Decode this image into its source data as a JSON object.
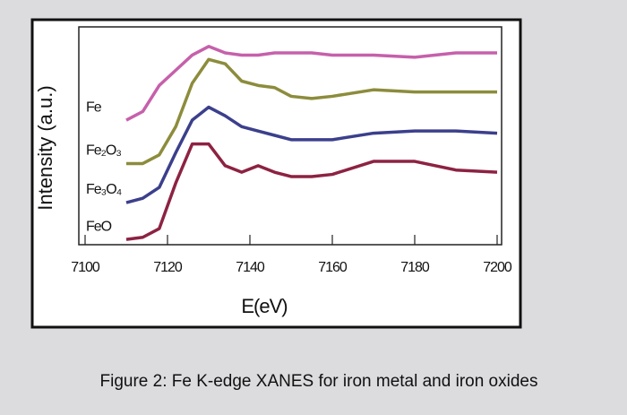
{
  "chart_data": {
    "type": "line",
    "caption": "Figure 2: Fe K-edge XANES for iron metal and iron oxides",
    "x_label": "E(eV)",
    "y_label": "Intensity (a.u.)",
    "xlim": [
      7100,
      7200
    ],
    "xticks": [
      7100,
      7120,
      7140,
      7160,
      7180,
      7200
    ],
    "ylim": [
      0,
      10
    ],
    "x": [
      7110,
      7114,
      7118,
      7122,
      7126,
      7130,
      7134,
      7138,
      7142,
      7146,
      7150,
      7155,
      7160,
      7170,
      7180,
      7190,
      7200
    ],
    "series": [
      {
        "name": "Fe",
        "color": "#c660ab",
        "values": [
          5.7,
          6.1,
          7.3,
          8.0,
          8.7,
          9.1,
          8.8,
          8.7,
          8.7,
          8.8,
          8.8,
          8.8,
          8.7,
          8.7,
          8.6,
          8.8,
          8.8
        ]
      },
      {
        "name": "Fe₂O₃",
        "color": "#8c8c3c",
        "values": [
          3.7,
          3.7,
          4.1,
          5.4,
          7.4,
          8.5,
          8.3,
          7.5,
          7.3,
          7.2,
          6.8,
          6.7,
          6.8,
          7.1,
          7.0,
          7.0,
          7.0
        ]
      },
      {
        "name": "Fe₃O₄",
        "color": "#3b3f8c",
        "values": [
          1.9,
          2.1,
          2.6,
          4.2,
          5.7,
          6.3,
          5.9,
          5.4,
          5.2,
          5.0,
          4.8,
          4.8,
          4.8,
          5.1,
          5.2,
          5.2,
          5.1
        ]
      },
      {
        "name": "FeO",
        "color": "#8d2242",
        "values": [
          0.2,
          0.3,
          0.7,
          2.8,
          4.6,
          4.6,
          3.6,
          3.3,
          3.6,
          3.3,
          3.1,
          3.1,
          3.2,
          3.8,
          3.8,
          3.4,
          3.3
        ]
      }
    ]
  }
}
